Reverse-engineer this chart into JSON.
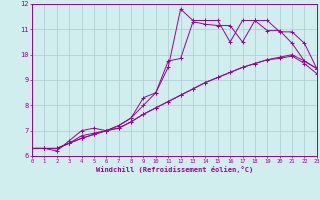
{
  "xlabel": "Windchill (Refroidissement éolien,°C)",
  "background_color": "#d0eeee",
  "line_color": "#990099",
  "grid_color": "#aacccc",
  "xlim": [
    0,
    23
  ],
  "ylim": [
    6,
    12
  ],
  "xticks": [
    0,
    1,
    2,
    3,
    4,
    5,
    6,
    7,
    8,
    9,
    10,
    11,
    12,
    13,
    14,
    15,
    16,
    17,
    18,
    19,
    20,
    21,
    22,
    23
  ],
  "yticks": [
    6,
    7,
    8,
    9,
    10,
    11,
    12
  ],
  "series1_x": [
    0,
    1,
    2,
    3,
    4,
    5,
    6,
    7,
    8,
    9,
    10,
    11,
    12,
    13,
    14,
    15,
    16,
    17,
    18,
    19,
    20,
    21,
    22,
    23
  ],
  "series1_y": [
    6.3,
    6.3,
    6.2,
    6.6,
    7.0,
    7.1,
    7.0,
    7.2,
    7.5,
    8.3,
    8.5,
    9.75,
    9.85,
    11.3,
    11.2,
    11.15,
    11.15,
    10.5,
    11.35,
    11.35,
    10.9,
    10.9,
    10.45,
    9.45
  ],
  "series2_x": [
    0,
    1,
    2,
    3,
    4,
    5,
    6,
    7,
    8,
    9,
    10,
    11,
    12,
    13,
    14,
    15,
    16,
    17,
    18,
    19,
    20,
    21,
    22,
    23
  ],
  "series2_y": [
    6.3,
    6.3,
    6.3,
    6.5,
    6.8,
    6.9,
    7.0,
    7.2,
    7.5,
    8.0,
    8.5,
    9.5,
    11.8,
    11.35,
    11.35,
    11.35,
    10.5,
    11.35,
    11.35,
    10.95,
    10.95,
    10.45,
    9.75,
    9.45
  ],
  "series3_x": [
    0,
    1,
    2,
    3,
    4,
    5,
    6,
    7,
    8,
    9,
    10,
    11,
    12,
    13,
    14,
    15,
    16,
    17,
    18,
    19,
    20,
    21,
    22,
    23
  ],
  "series3_y": [
    6.3,
    6.3,
    6.3,
    6.5,
    6.7,
    6.85,
    7.0,
    7.1,
    7.35,
    7.65,
    7.9,
    8.15,
    8.4,
    8.65,
    8.9,
    9.1,
    9.3,
    9.5,
    9.65,
    9.8,
    9.9,
    10.0,
    9.75,
    9.45
  ],
  "series4_x": [
    0,
    1,
    2,
    3,
    4,
    5,
    6,
    7,
    8,
    9,
    10,
    11,
    12,
    13,
    14,
    15,
    16,
    17,
    18,
    19,
    20,
    21,
    22,
    23
  ],
  "series4_y": [
    6.3,
    6.3,
    6.3,
    6.5,
    6.7,
    6.85,
    7.0,
    7.1,
    7.35,
    7.65,
    7.9,
    8.15,
    8.4,
    8.65,
    8.9,
    9.1,
    9.3,
    9.5,
    9.65,
    9.8,
    9.85,
    9.95,
    9.65,
    9.25
  ]
}
